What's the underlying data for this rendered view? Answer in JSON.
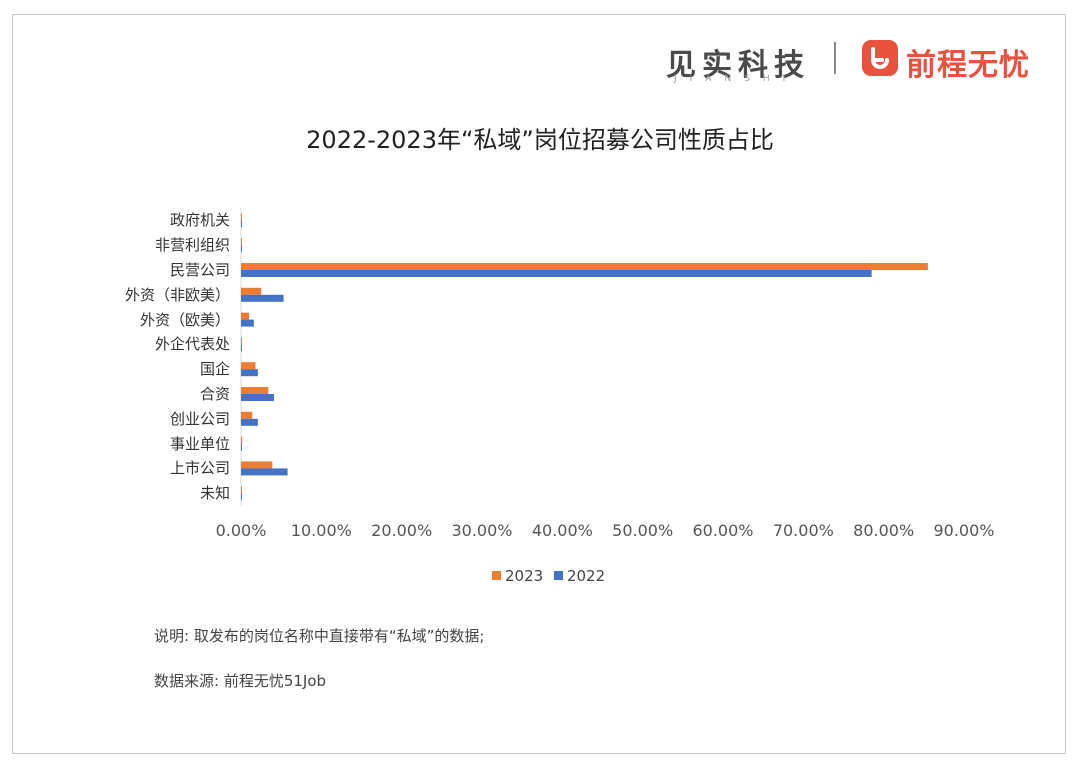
{
  "brand": {
    "jianshi": "见实科技",
    "jianshi_pinyin": "JIANSHI",
    "separator": "|",
    "partner": "前程无忧",
    "partner_icon": "smile-icon",
    "partner_color": "#e8523f"
  },
  "chart_data": {
    "type": "bar",
    "orientation": "horizontal",
    "title": "2022-2023年“私域”岗位招募公司性质占比",
    "xlabel": "",
    "ylabel": "",
    "xlim": [
      0,
      90
    ],
    "x_ticks": [
      "0.00%",
      "10.00%",
      "20.00%",
      "30.00%",
      "40.00%",
      "50.00%",
      "60.00%",
      "70.00%",
      "80.00%",
      "90.00%"
    ],
    "grid": false,
    "legend_position": "bottom",
    "categories": [
      "政府机关",
      "非营利组织",
      "民营公司",
      "外资（非欧美）",
      "外资（欧美）",
      "外企代表处",
      "国企",
      "合资",
      "创业公司",
      "事业单位",
      "上市公司",
      "未知"
    ],
    "series": [
      {
        "name": "2023",
        "color": "#ed7d31",
        "values": [
          0.05,
          0.05,
          85.5,
          2.5,
          1.0,
          0.05,
          1.8,
          3.4,
          1.4,
          0.15,
          3.9,
          0.05
        ]
      },
      {
        "name": "2022",
        "color": "#4472c4",
        "values": [
          0.05,
          0.05,
          78.5,
          5.3,
          1.6,
          0.05,
          2.1,
          4.1,
          2.1,
          0.05,
          5.8,
          0.05
        ]
      }
    ]
  },
  "notes": {
    "description": "说明: 取发布的岗位名称中直接带有“私域”的数据;",
    "source": "数据来源: 前程无忧51Job"
  }
}
